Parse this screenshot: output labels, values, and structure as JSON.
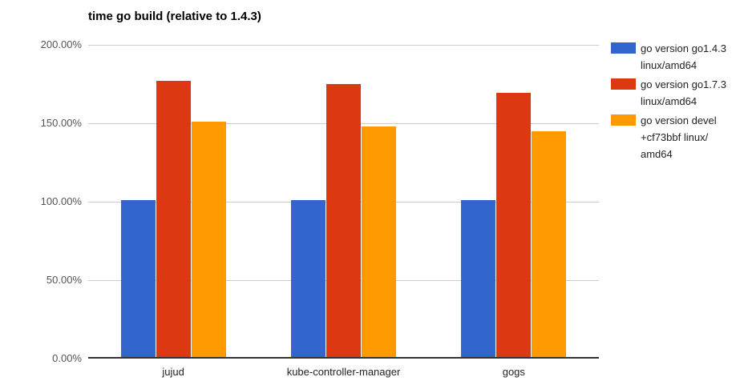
{
  "title": "time go build (relative to 1.4.3)",
  "colors": {
    "background": "#ffffff",
    "title_text": "#000000",
    "gridline": "#cccccc",
    "baseline": "#333333",
    "yaxis_text": "#555555",
    "xaxis_text": "#222222",
    "legend_text": "#222222",
    "series_blue": "#3366cc",
    "series_red": "#dc3912",
    "series_orange": "#ff9900"
  },
  "chart_data": {
    "type": "bar",
    "title": "time go build (relative to 1.4.3)",
    "categories": [
      "jujud",
      "kube-controller-manager",
      "gogs"
    ],
    "series": [
      {
        "name": "go version go1.4.3 linux/amd64",
        "color": "#3366cc",
        "values": [
          100,
          100,
          100
        ]
      },
      {
        "name": "go version go1.7.3 linux/amd64",
        "color": "#dc3912",
        "values": [
          176,
          174,
          168.5
        ]
      },
      {
        "name": "go version devel +cf73bbf linux/amd64",
        "color": "#ff9900",
        "values": [
          150,
          147,
          144
        ]
      }
    ],
    "ylim": [
      0,
      200
    ],
    "yticks": [
      {
        "value": 0,
        "label": "0.00%"
      },
      {
        "value": 50,
        "label": "50.00%"
      },
      {
        "value": 100,
        "label": "100.00%"
      },
      {
        "value": 150,
        "label": "150.00%"
      },
      {
        "value": 200,
        "label": "200.00%"
      }
    ],
    "xlabel": "",
    "ylabel": "",
    "grid": true,
    "legend_position": "right",
    "value_format": "percent"
  },
  "legend": {
    "items": [
      {
        "color": "#3366cc",
        "label": "go version go1.4.3 linux/amd64",
        "lines": [
          "go version go1.4.3",
          "linux/amd64"
        ]
      },
      {
        "color": "#dc3912",
        "label": "go version go1.7.3 linux/amd64",
        "lines": [
          "go version go1.7.3",
          "linux/amd64"
        ]
      },
      {
        "color": "#ff9900",
        "label": "go version devel +cf73bbf linux/amd64",
        "lines": [
          "go version devel",
          "+cf73bbf linux/",
          "amd64"
        ]
      }
    ]
  }
}
